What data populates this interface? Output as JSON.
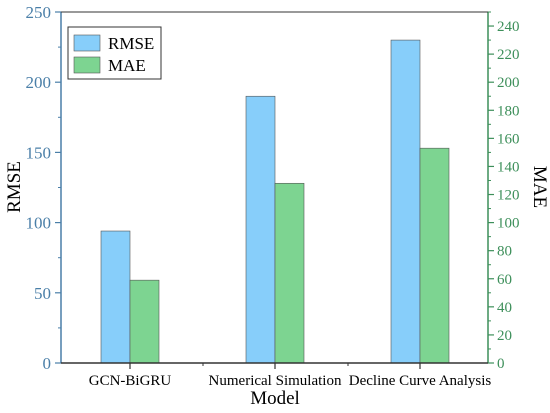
{
  "chart_data": {
    "type": "bar",
    "categories": [
      "GCN-BiGRU",
      "Numerical Simulation",
      "Decline Curve Analysis"
    ],
    "xlabel": "Model",
    "series": [
      {
        "name": "RMSE",
        "axis": "left",
        "values": [
          94,
          190,
          230
        ],
        "color": "#87cefa"
      },
      {
        "name": "MAE",
        "axis": "right",
        "values": [
          59,
          128,
          153
        ],
        "color": "#7dd491"
      }
    ],
    "y_left": {
      "label": "RMSE",
      "range": [
        0,
        250
      ],
      "ticks": [
        "0",
        "50",
        "100",
        "150",
        "200",
        "250"
      ],
      "color": "#4a7fa8"
    },
    "y_right": {
      "label": "MAE",
      "range": [
        0,
        250
      ],
      "ticks": [
        "0",
        "20",
        "40",
        "60",
        "80",
        "100",
        "120",
        "140",
        "160",
        "180",
        "200",
        "220",
        "240"
      ],
      "color": "#3d8f5a"
    },
    "legend": {
      "position": "top-left"
    },
    "grid": false
  }
}
